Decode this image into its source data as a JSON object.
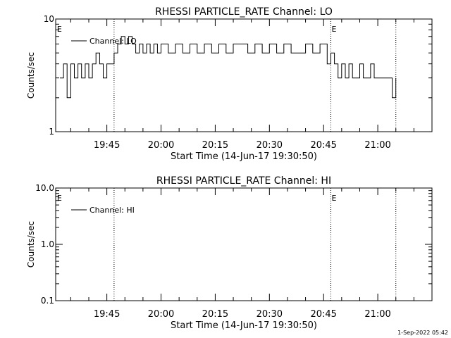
{
  "chart_data": [
    {
      "type": "line",
      "title": "RHESSI PARTICLE_RATE Channel: LO",
      "xlabel": "Start Time (14-Jun-17 19:30:50)",
      "ylabel": "Counts/sec",
      "y_scale": "log",
      "ylim": [
        1,
        10
      ],
      "yticks": [
        1,
        10
      ],
      "yticklabels": [
        "1",
        "10"
      ],
      "xlim": [
        "19:30:50",
        "21:15:00"
      ],
      "xticks": [
        "19:45",
        "20:00",
        "20:15",
        "20:30",
        "20:45",
        "21:00"
      ],
      "grid": false,
      "legend_position": "top-left",
      "vlines": [
        {
          "x": "19:47:00",
          "label": "E"
        },
        {
          "x": "20:47:00",
          "label": ""
        },
        {
          "x": "21:05:00",
          "label": ""
        }
      ],
      "corner_labels": [
        {
          "x": "19:31:00",
          "label": "E"
        },
        {
          "x": "20:47:00",
          "label": "E"
        }
      ],
      "series": [
        {
          "name": "Channel: LO",
          "x": [
            "19:32:00",
            "19:33:00",
            "19:34:00",
            "19:35:00",
            "19:36:00",
            "19:37:00",
            "19:38:00",
            "19:39:00",
            "19:40:00",
            "19:41:00",
            "19:42:00",
            "19:43:00",
            "19:44:00",
            "19:45:00",
            "19:46:00",
            "19:47:00",
            "19:48:00",
            "19:49:00",
            "19:50:00",
            "19:51:00",
            "19:52:00",
            "19:53:00",
            "19:54:00",
            "19:55:00",
            "19:56:00",
            "19:57:00",
            "19:58:00",
            "19:59:00",
            "20:00:00",
            "20:02:00",
            "20:04:00",
            "20:06:00",
            "20:08:00",
            "20:10:00",
            "20:12:00",
            "20:14:00",
            "20:16:00",
            "20:18:00",
            "20:20:00",
            "20:22:00",
            "20:24:00",
            "20:26:00",
            "20:28:00",
            "20:30:00",
            "20:32:00",
            "20:34:00",
            "20:36:00",
            "20:38:00",
            "20:40:00",
            "20:42:00",
            "20:44:00",
            "20:46:00",
            "20:47:00",
            "20:48:00",
            "20:49:00",
            "20:50:00",
            "20:51:00",
            "20:52:00",
            "20:53:00",
            "20:54:00",
            "20:55:00",
            "20:56:00",
            "20:57:00",
            "20:58:00",
            "20:59:00",
            "21:00:00",
            "21:01:00",
            "21:02:00",
            "21:03:00",
            "21:04:00",
            "21:05:00"
          ],
          "values": [
            3,
            4,
            2,
            4,
            3,
            4,
            3,
            4,
            3,
            4,
            5,
            4,
            3,
            4,
            4,
            5,
            6,
            7,
            6,
            7,
            6,
            5,
            6,
            5,
            6,
            5,
            6,
            5,
            6,
            5,
            6,
            5,
            6,
            5,
            6,
            5,
            6,
            5,
            6,
            6,
            5,
            6,
            5,
            6,
            5,
            6,
            5,
            5,
            6,
            5,
            6,
            4,
            5,
            4,
            3,
            4,
            3,
            4,
            3,
            3,
            4,
            3,
            3,
            4,
            3,
            3,
            3,
            3,
            3,
            2,
            3
          ]
        }
      ]
    },
    {
      "type": "line",
      "title": "RHESSI PARTICLE_RATE Channel: HI",
      "xlabel": "Start Time (14-Jun-17 19:30:50)",
      "ylabel": "Counts/sec",
      "y_scale": "log",
      "ylim": [
        0.1,
        10
      ],
      "yticks": [
        0.1,
        1,
        10
      ],
      "yticklabels": [
        "0.1",
        "1.0",
        "10.0"
      ],
      "xlim": [
        "19:30:50",
        "21:15:00"
      ],
      "xticks": [
        "19:45",
        "20:00",
        "20:15",
        "20:30",
        "20:45",
        "21:00"
      ],
      "grid": false,
      "legend_position": "top-left",
      "vlines": [
        {
          "x": "19:47:00",
          "label": ""
        },
        {
          "x": "20:47:00",
          "label": ""
        },
        {
          "x": "21:05:00",
          "label": ""
        }
      ],
      "corner_labels": [
        {
          "x": "19:31:00",
          "label": "E"
        },
        {
          "x": "20:47:00",
          "label": "E"
        }
      ],
      "series": [
        {
          "name": "Channel: HI",
          "x": [],
          "values": []
        }
      ]
    }
  ],
  "footer": {
    "timestamp": "1-Sep-2022 05:42"
  }
}
